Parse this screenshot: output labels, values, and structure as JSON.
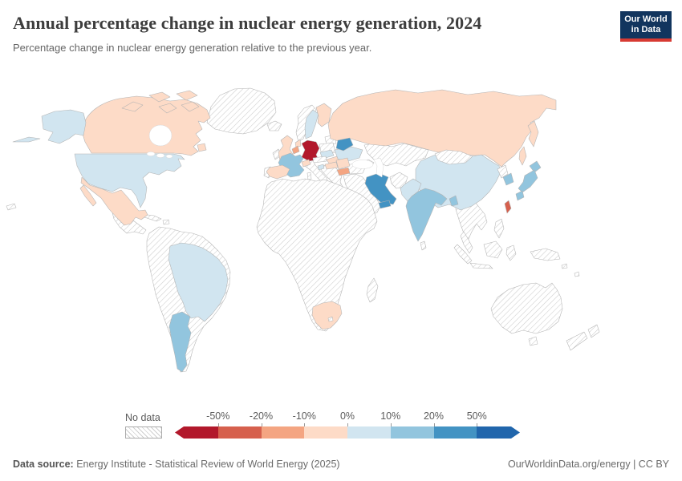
{
  "header": {
    "title": "Annual percentage change in nuclear energy generation, 2024",
    "subtitle": "Percentage change in nuclear energy generation relative to the previous year.",
    "logo_line1": "Our World",
    "logo_line2": "in Data",
    "logo_bg": "#12355e",
    "logo_accent": "#d73a33"
  },
  "legend": {
    "no_data_label": "No data",
    "ticks": [
      "-50%",
      "-20%",
      "-10%",
      "0%",
      "10%",
      "20%",
      "50%"
    ],
    "bins": [
      "#b2182b",
      "#d6604d",
      "#f4a582",
      "#fddbc7",
      "#d1e5f0",
      "#92c5de",
      "#4393c3",
      "#2166ac"
    ]
  },
  "footer": {
    "source_label": "Data source:",
    "source_text": " Energy Institute - Statistical Review of World Energy (2025)",
    "right_text": "OurWorldinData.org/energy | CC BY"
  },
  "map": {
    "palette": {
      "no_data": "hatch",
      "dark_red": "#b2182b",
      "red": "#d6604d",
      "orange": "#f4a582",
      "pale_orange": "#fddbc7",
      "pale_blue": "#d1e5f0",
      "light_blue": "#92c5de",
      "blue": "#4393c3",
      "dark_blue": "#2166ac"
    },
    "regions": [
      {
        "id": "canada",
        "label": "Canada",
        "bin": "pale_orange"
      },
      {
        "id": "usa",
        "label": "United States",
        "bin": "pale_blue"
      },
      {
        "id": "mexico",
        "label": "Mexico",
        "bin": "pale_orange"
      },
      {
        "id": "brazil",
        "label": "Brazil",
        "bin": "pale_blue"
      },
      {
        "id": "argentina",
        "label": "Argentina",
        "bin": "light_blue"
      },
      {
        "id": "uk",
        "label": "United Kingdom",
        "bin": "pale_orange"
      },
      {
        "id": "france",
        "label": "France",
        "bin": "light_blue"
      },
      {
        "id": "spain",
        "label": "Spain",
        "bin": "pale_orange"
      },
      {
        "id": "netherlands",
        "label": "Netherlands",
        "bin": "pale_orange"
      },
      {
        "id": "belgium",
        "label": "Belgium",
        "bin": "orange"
      },
      {
        "id": "germany",
        "label": "Germany",
        "bin": "dark_red"
      },
      {
        "id": "switzerland",
        "label": "Switzerland",
        "bin": "pale_orange"
      },
      {
        "id": "czechia",
        "label": "Czechia",
        "bin": "pale_blue"
      },
      {
        "id": "slovakia",
        "label": "Slovakia",
        "bin": "pale_orange"
      },
      {
        "id": "hungary",
        "label": "Hungary",
        "bin": "pale_orange"
      },
      {
        "id": "slovenia",
        "label": "Slovenia",
        "bin": "pale_blue"
      },
      {
        "id": "romania",
        "label": "Romania",
        "bin": "pale_orange"
      },
      {
        "id": "bulgaria",
        "label": "Bulgaria",
        "bin": "orange"
      },
      {
        "id": "sweden",
        "label": "Sweden",
        "bin": "pale_blue"
      },
      {
        "id": "finland",
        "label": "Finland",
        "bin": "pale_orange"
      },
      {
        "id": "belarus",
        "label": "Belarus",
        "bin": "blue"
      },
      {
        "id": "ukraine",
        "label": "Ukraine",
        "bin": "pale_blue"
      },
      {
        "id": "russia",
        "label": "Russia",
        "bin": "pale_orange"
      },
      {
        "id": "iran",
        "label": "Iran",
        "bin": "blue"
      },
      {
        "id": "uae",
        "label": "United Arab Emirates",
        "bin": "blue"
      },
      {
        "id": "pakistan",
        "label": "Pakistan",
        "bin": "pale_blue"
      },
      {
        "id": "india",
        "label": "India",
        "bin": "light_blue"
      },
      {
        "id": "bangladesh",
        "label": "Bangladesh",
        "bin": "light_blue"
      },
      {
        "id": "china",
        "label": "China",
        "bin": "pale_blue"
      },
      {
        "id": "south_korea",
        "label": "South Korea",
        "bin": "light_blue"
      },
      {
        "id": "japan",
        "label": "Japan",
        "bin": "light_blue"
      },
      {
        "id": "taiwan",
        "label": "Taiwan",
        "bin": "red"
      },
      {
        "id": "south_africa",
        "label": "South Africa",
        "bin": "pale_orange"
      },
      {
        "id": "greenland",
        "label": "Greenland",
        "bin": "no_data"
      },
      {
        "id": "iceland",
        "label": "Iceland",
        "bin": "no_data"
      },
      {
        "id": "ireland",
        "label": "Ireland",
        "bin": "no_data"
      },
      {
        "id": "norway",
        "label": "Norway",
        "bin": "no_data"
      },
      {
        "id": "denmark",
        "label": "Denmark",
        "bin": "no_data"
      },
      {
        "id": "baltics",
        "label": "Baltic states",
        "bin": "no_data"
      },
      {
        "id": "poland",
        "label": "Poland",
        "bin": "no_data"
      },
      {
        "id": "austria",
        "label": "Austria",
        "bin": "no_data"
      },
      {
        "id": "italy",
        "label": "Italy",
        "bin": "no_data"
      },
      {
        "id": "portugal",
        "label": "Portugal",
        "bin": "no_data"
      },
      {
        "id": "balkans",
        "label": "Balkans",
        "bin": "no_data"
      },
      {
        "id": "turkey",
        "label": "Turkey",
        "bin": "no_data"
      },
      {
        "id": "middle_east",
        "label": "Middle East",
        "bin": "no_data"
      },
      {
        "id": "caucasus",
        "label": "Caucasus",
        "bin": "no_data"
      },
      {
        "id": "centralasia",
        "label": "Central Asia",
        "bin": "no_data"
      },
      {
        "id": "afghanistan",
        "label": "Afghanistan",
        "bin": "no_data"
      },
      {
        "id": "mongolia",
        "label": "Mongolia",
        "bin": "no_data"
      },
      {
        "id": "north_korea",
        "label": "North Korea",
        "bin": "no_data"
      },
      {
        "id": "se_asia",
        "label": "Southeast Asia",
        "bin": "no_data"
      },
      {
        "id": "indonesia",
        "label": "Indonesia",
        "bin": "no_data"
      },
      {
        "id": "philippines",
        "label": "Philippines",
        "bin": "no_data"
      },
      {
        "id": "sri_lanka",
        "label": "Sri Lanka",
        "bin": "no_data"
      },
      {
        "id": "africa",
        "label": "Africa (other)",
        "bin": "no_data"
      },
      {
        "id": "madagascar",
        "label": "Madagascar",
        "bin": "no_data"
      },
      {
        "id": "australia",
        "label": "Australia",
        "bin": "no_data"
      },
      {
        "id": "new_zealand",
        "label": "New Zealand",
        "bin": "no_data"
      },
      {
        "id": "pacific",
        "label": "Pacific islands",
        "bin": "no_data"
      },
      {
        "id": "central_america",
        "label": "Central America",
        "bin": "no_data"
      },
      {
        "id": "caribbean",
        "label": "Caribbean",
        "bin": "no_data"
      },
      {
        "id": "sa_other",
        "label": "South America (other)",
        "bin": "no_data"
      },
      {
        "id": "lesotho",
        "label": "Lesotho",
        "bin": "no_data"
      },
      {
        "id": "hawaii",
        "label": "Hawaii",
        "bin": "no_data"
      }
    ]
  },
  "chart_data": {
    "type": "heatmap",
    "variant": "choropleth-world-map",
    "title": "Annual percentage change in nuclear energy generation, 2024",
    "unit": "%",
    "legend_position": "bottom",
    "bin_edges_pct": [
      -50,
      -20,
      -10,
      0,
      10,
      20,
      50
    ],
    "bin_labels": [
      "below -50%",
      "-50% to -20%",
      "-20% to -10%",
      "-10% to 0%",
      "0% to 10%",
      "10% to 20%",
      "20% to 50%",
      "above 50%"
    ],
    "bin_colors": [
      "#b2182b",
      "#d6604d",
      "#f4a582",
      "#fddbc7",
      "#d1e5f0",
      "#92c5de",
      "#4393c3",
      "#2166ac"
    ],
    "no_data_style": "diagonal-hatch",
    "countries_by_bin": {
      "below -50%": [
        "Germany"
      ],
      "-50% to -20%": [
        "Taiwan"
      ],
      "-20% to -10%": [
        "Belgium",
        "Bulgaria"
      ],
      "-10% to 0%": [
        "Canada",
        "Mexico",
        "Russia",
        "Finland",
        "United Kingdom",
        "Spain",
        "Netherlands",
        "Switzerland",
        "Slovakia",
        "Hungary",
        "Romania",
        "South Africa"
      ],
      "0% to 10%": [
        "United States",
        "Brazil",
        "China",
        "Pakistan",
        "Sweden",
        "Czechia",
        "Ukraine",
        "Slovenia"
      ],
      "10% to 20%": [
        "France",
        "Argentina",
        "India",
        "Bangladesh",
        "Japan",
        "South Korea"
      ],
      "20% to 50%": [
        "Belarus",
        "Iran",
        "United Arab Emirates"
      ],
      "above 50%": []
    }
  }
}
